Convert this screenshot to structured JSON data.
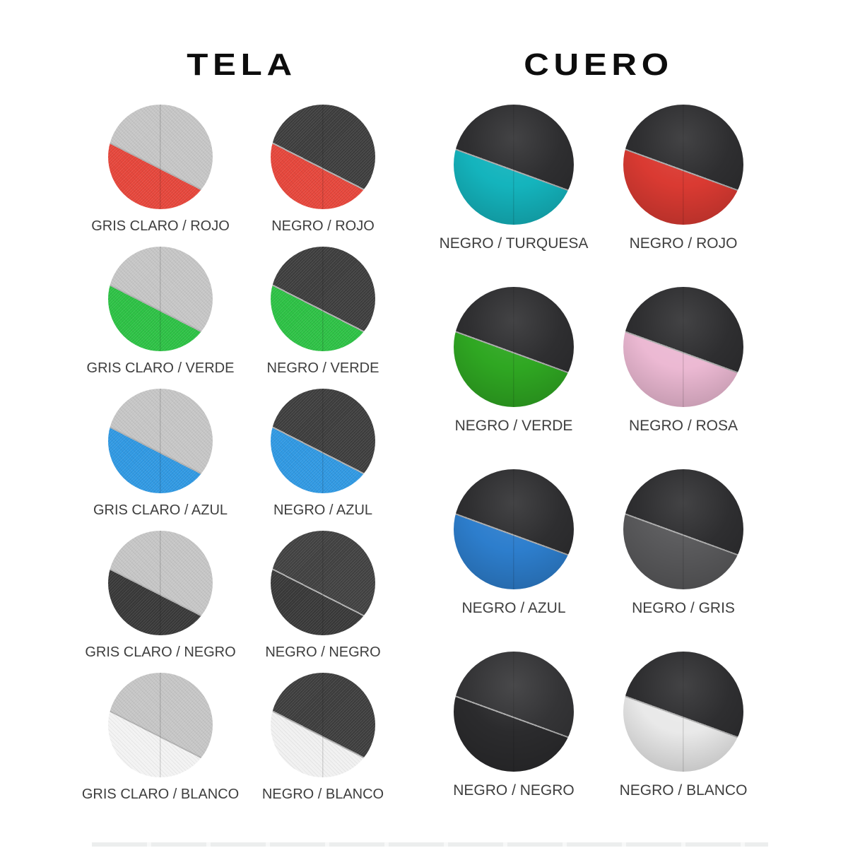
{
  "sections": [
    {
      "id": "tela",
      "title": "TELA",
      "swatches": [
        {
          "label": "GRIS CLARO / ROJO",
          "top": "#c6c6c6",
          "bottom": "#e5453a"
        },
        {
          "label": "NEGRO / ROJO",
          "top": "#3d3d3d",
          "bottom": "#e5453a"
        },
        {
          "label": "GRIS CLARO / VERDE",
          "top": "#c6c6c6",
          "bottom": "#2cc144"
        },
        {
          "label": "NEGRO / VERDE",
          "top": "#3d3d3d",
          "bottom": "#2cc144"
        },
        {
          "label": "GRIS CLARO / AZUL",
          "top": "#c6c6c6",
          "bottom": "#2f98e2"
        },
        {
          "label": "NEGRO / AZUL",
          "top": "#3d3d3d",
          "bottom": "#2f98e2"
        },
        {
          "label": "GRIS CLARO / NEGRO",
          "top": "#c6c6c6",
          "bottom": "#383838"
        },
        {
          "label": "NEGRO / NEGRO",
          "top": "#414141",
          "bottom": "#383838"
        },
        {
          "label": "GRIS CLARO / BLANCO",
          "top": "#c6c6c6",
          "bottom": "#f3f3f3"
        },
        {
          "label": "NEGRO / BLANCO",
          "top": "#3d3d3d",
          "bottom": "#f1f1f1"
        }
      ]
    },
    {
      "id": "cuero",
      "title": "CUERO",
      "swatches": [
        {
          "label": "NEGRO / TURQUESA",
          "top": "#2e2e30",
          "bottom": "#14b4bd"
        },
        {
          "label": "NEGRO / ROJO",
          "top": "#2e2e30",
          "bottom": "#da3a32"
        },
        {
          "label": "NEGRO / VERDE",
          "top": "#2e2e30",
          "bottom": "#2fa722"
        },
        {
          "label": "NEGRO / ROSA",
          "top": "#2e2e30",
          "bottom": "#ecb9d3"
        },
        {
          "label": "NEGRO / AZUL",
          "top": "#2e2e30",
          "bottom": "#2d7ecd"
        },
        {
          "label": "NEGRO / GRIS",
          "top": "#2e2e30",
          "bottom": "#59595b"
        },
        {
          "label": "NEGRO / NEGRO",
          "top": "#343436",
          "bottom": "#2b2b2d"
        },
        {
          "label": "NEGRO / BLANCO",
          "top": "#2e2e30",
          "bottom": "#e9e9e9"
        }
      ]
    }
  ]
}
